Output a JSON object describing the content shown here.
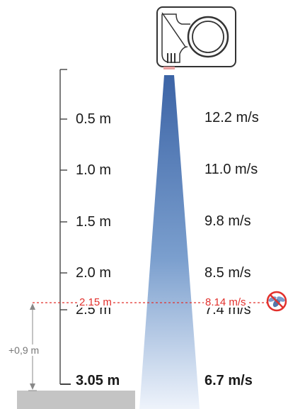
{
  "colors": {
    "beam_top": "#3c64a6",
    "beam_bottom": "#eaf1fa",
    "mark_red": "#e2302c",
    "scale_line": "#444444",
    "floor": "#c4c4c4",
    "dim_grey": "#888888"
  },
  "icons": {
    "unit": "air-curtain-unit-icon",
    "no_insects": "no-insects-icon"
  },
  "readings": [
    {
      "distance": "0.5 m",
      "speed": "12.2 m/s",
      "bold": false
    },
    {
      "distance": "1.0 m",
      "speed": "11.0 m/s",
      "bold": false
    },
    {
      "distance": "1.5 m",
      "speed": "9.8 m/s",
      "bold": false
    },
    {
      "distance": "2.0 m",
      "speed": "8.5 m/s",
      "bold": false
    },
    {
      "distance": "2.5 m",
      "speed": "7.4 m/s",
      "bold": false
    },
    {
      "distance": "3.05 m",
      "speed": "6.7 m/s",
      "bold": true
    }
  ],
  "threshold": {
    "distance": "2.15 m",
    "speed": "8.14 m/s"
  },
  "clearance": {
    "label": "+0,9 m"
  }
}
